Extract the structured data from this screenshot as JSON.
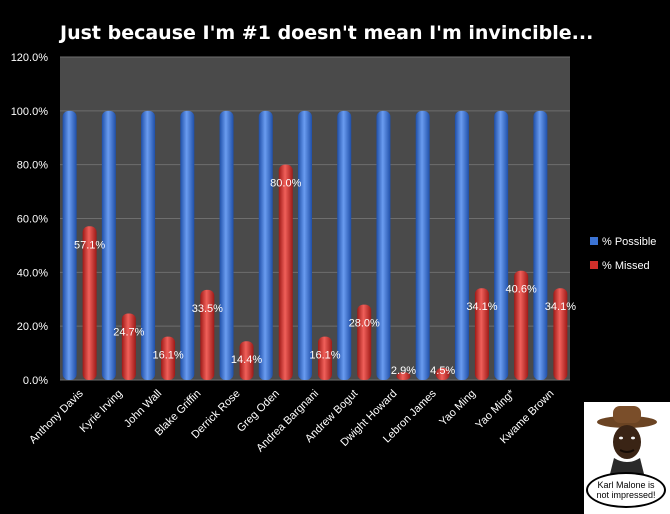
{
  "chart_data": {
    "type": "bar",
    "title": "Just because I'm #1 doesn't mean I'm invincible...",
    "categories": [
      "Anthony Davis",
      "Kyrie Irving",
      "John Wall",
      "Blake Griffin",
      "Derrick Rose",
      "Greg Oden",
      "Andrea Bargnani",
      "Andrew Bogut",
      "Dwight Howard",
      "Lebron James",
      "Yao Ming",
      "Yao Ming*",
      "Kwame Brown"
    ],
    "series": [
      {
        "name": "% Possible",
        "color": "#3b73d4",
        "values": [
          100,
          100,
          100,
          100,
          100,
          100,
          100,
          100,
          100,
          100,
          100,
          100,
          100
        ]
      },
      {
        "name": "% Missed",
        "color": "#d02f2a",
        "values": [
          57.1,
          24.7,
          16.1,
          33.5,
          14.4,
          80.0,
          16.1,
          28.0,
          2.9,
          4.5,
          34.1,
          40.6,
          34.1
        ]
      }
    ],
    "data_labels": [
      "57.1%",
      "24.7%",
      "16.1%",
      "33.5%",
      "14.4%",
      "80.0%",
      "16.1%",
      "28.0%",
      "2.9%",
      "4.5%",
      "34.1%",
      "40.6%",
      "34.1%"
    ],
    "y_ticks": [
      "0.0%",
      "20.0%",
      "40.0%",
      "60.0%",
      "80.0%",
      "100.0%",
      "120.0%"
    ],
    "ylim": [
      0,
      120
    ],
    "grid": true,
    "legend_position": "right",
    "plot_background": "#4a4a4a"
  },
  "annotation": {
    "caption": "Karl Malone is not impressed!",
    "icon": "cowboy-portrait-icon"
  }
}
